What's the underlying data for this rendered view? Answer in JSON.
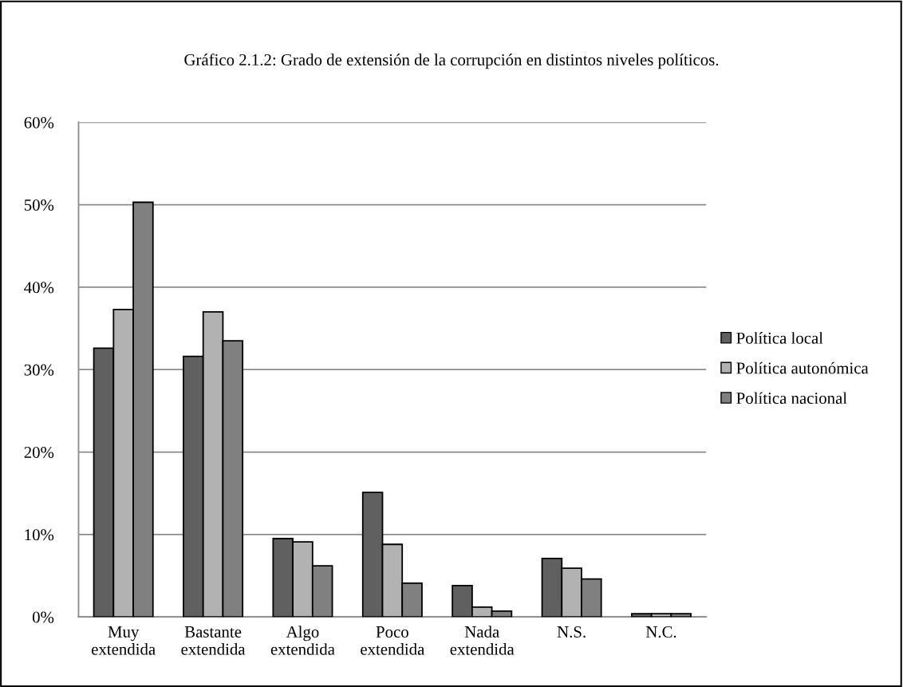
{
  "chart_data": {
    "type": "bar",
    "title": "Gráfico 2.1.2: Grado de extensión de la corrupción en distintos niveles políticos.",
    "categories": [
      "Muy\nextendida",
      "Bastante\nextendida",
      "Algo\nextendida",
      "Poco\nextendida",
      "Nada\nextendida",
      "N.S.",
      "N.C."
    ],
    "series": [
      {
        "name": "Política local",
        "color": "#606060",
        "values": [
          32.6,
          31.6,
          9.5,
          15.1,
          3.8,
          7.1,
          0.4
        ]
      },
      {
        "name": "Política autonómica",
        "color": "#b2b2b2",
        "values": [
          37.3,
          37.0,
          9.1,
          8.8,
          1.2,
          5.9,
          0.4
        ]
      },
      {
        "name": "Política nacional",
        "color": "#808080",
        "values": [
          50.3,
          33.5,
          6.2,
          4.1,
          0.7,
          4.6,
          0.4
        ]
      }
    ],
    "ylim": [
      0,
      60
    ],
    "yticks": [
      {
        "value": 0,
        "label": "0%"
      },
      {
        "value": 10,
        "label": "10%"
      },
      {
        "value": 20,
        "label": "20%"
      },
      {
        "value": 30,
        "label": "30%"
      },
      {
        "value": 40,
        "label": "40%"
      },
      {
        "value": 50,
        "label": "50%"
      },
      {
        "value": 60,
        "label": "60%"
      }
    ],
    "grid": "y",
    "legend": "right"
  }
}
